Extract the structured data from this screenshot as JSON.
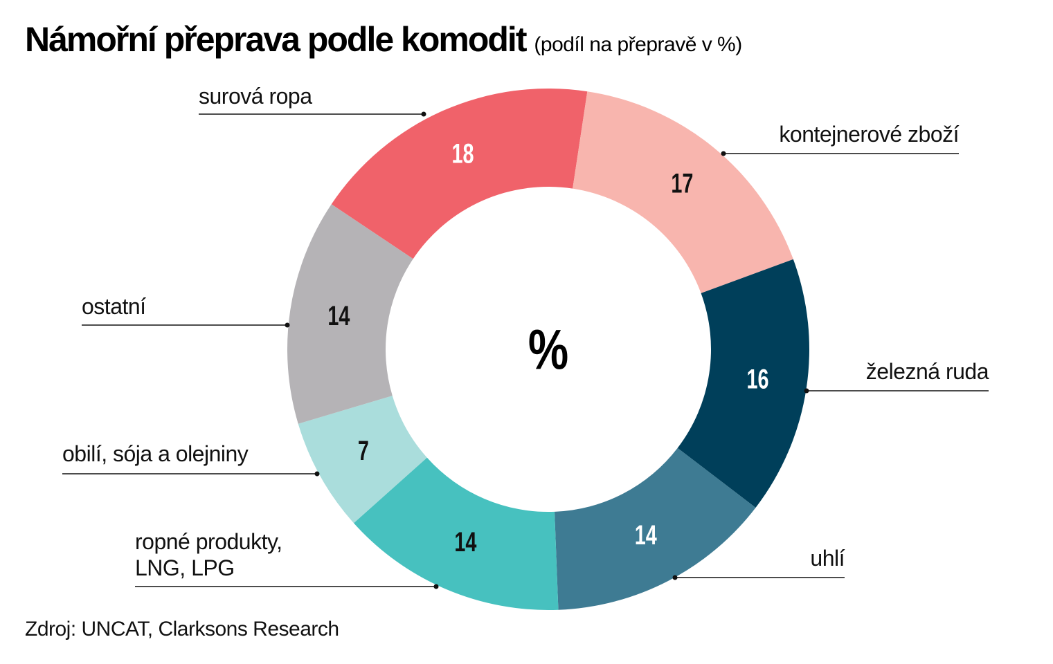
{
  "chart_data": {
    "type": "donut",
    "title": "Námořní přeprava podle komodit",
    "subtitle": "(podíl na přepravě v %)",
    "center_label": "%",
    "source": "Zdroj: UNCAT, Clarksons Research",
    "categories": [
      "surová ropa",
      "kontejnerové zboží",
      "železná ruda",
      "uhlí",
      "ropné produkty, LNG, LPG",
      "obilí, sója a olejniny",
      "ostatní"
    ],
    "values": [
      18,
      17,
      16,
      14,
      14,
      7,
      14
    ],
    "colors": [
      "#f0626a",
      "#f8b5ae",
      "#003f5a",
      "#3e7b93",
      "#47c1bf",
      "#aadddc",
      "#b5b3b6"
    ]
  }
}
